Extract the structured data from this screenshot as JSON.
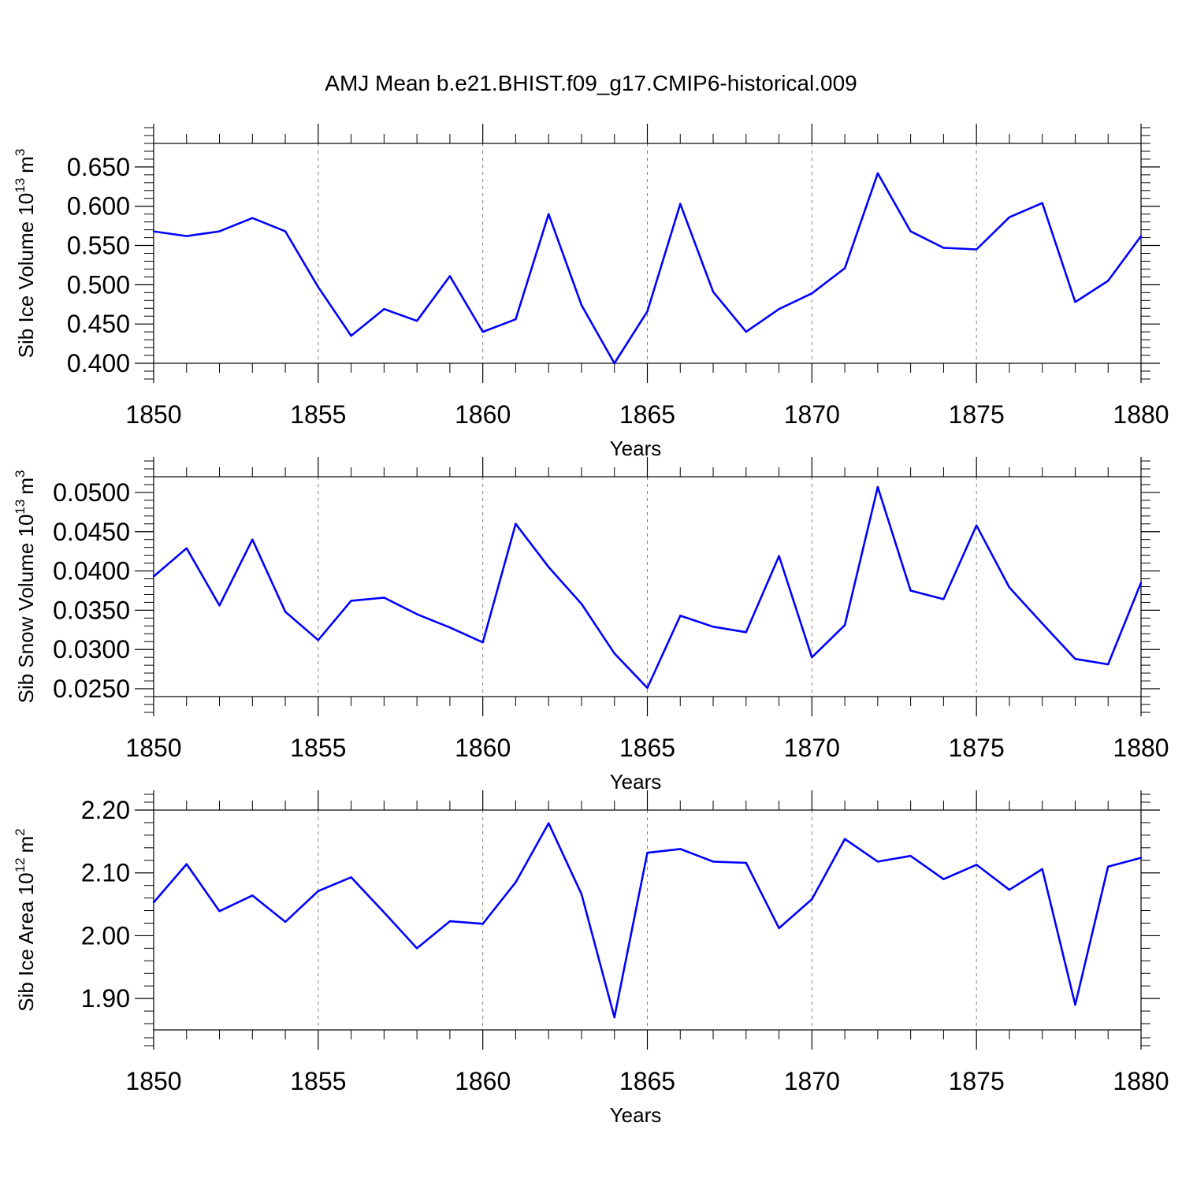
{
  "title": "AMJ Mean b.e21.BHIST.f09_g17.CMIP6-historical.009",
  "colors": {
    "line": "#0000ff",
    "axis": "#000000",
    "grid": "#808080"
  },
  "chart_data": [
    {
      "type": "line",
      "name": "ice-volume",
      "ylabel_main": "Sib Ice Volume 10",
      "ylabel_exp": "13",
      "ylabel_unit": "m",
      "ylabel_unit_exp": "3",
      "xlabel": "Years",
      "xlim": [
        1850,
        1880
      ],
      "ylim": [
        0.4,
        0.68
      ],
      "yticks": [
        0.4,
        0.45,
        0.5,
        0.55,
        0.6,
        0.65
      ],
      "ytick_labels": [
        "0.400",
        "0.450",
        "0.500",
        "0.550",
        "0.600",
        "0.650"
      ],
      "xticks": [
        1850,
        1855,
        1860,
        1865,
        1870,
        1875,
        1880
      ],
      "xtick_labels": [
        "1850",
        "1855",
        "1860",
        "1865",
        "1870",
        "1875",
        "1880"
      ],
      "grid_x": [
        1855,
        1860,
        1865,
        1870,
        1875
      ],
      "x": [
        1850,
        1851,
        1852,
        1853,
        1854,
        1855,
        1856,
        1857,
        1858,
        1859,
        1860,
        1861,
        1862,
        1863,
        1864,
        1865,
        1866,
        1867,
        1868,
        1869,
        1870,
        1871,
        1872,
        1873,
        1874,
        1875,
        1876,
        1877,
        1878,
        1879,
        1880
      ],
      "values": [
        0.568,
        0.562,
        0.568,
        0.585,
        0.568,
        0.497,
        0.435,
        0.469,
        0.454,
        0.511,
        0.44,
        0.456,
        0.59,
        0.474,
        0.4,
        0.466,
        0.603,
        0.491,
        0.44,
        0.469,
        0.489,
        0.521,
        0.642,
        0.568,
        0.547,
        0.545,
        0.586,
        0.604,
        0.478,
        0.505,
        0.562
      ]
    },
    {
      "type": "line",
      "name": "snow-volume",
      "ylabel_main": "Sib Snow Volume 10",
      "ylabel_exp": "13",
      "ylabel_unit": "m",
      "ylabel_unit_exp": "3",
      "xlabel": "Years",
      "xlim": [
        1850,
        1880
      ],
      "ylim": [
        0.024,
        0.052
      ],
      "yticks": [
        0.025,
        0.03,
        0.035,
        0.04,
        0.045,
        0.05
      ],
      "ytick_labels": [
        "0.0250",
        "0.0300",
        "0.0350",
        "0.0400",
        "0.0450",
        "0.0500"
      ],
      "xticks": [
        1850,
        1855,
        1860,
        1865,
        1870,
        1875,
        1880
      ],
      "xtick_labels": [
        "1850",
        "1855",
        "1860",
        "1865",
        "1870",
        "1875",
        "1880"
      ],
      "grid_x": [
        1855,
        1860,
        1865,
        1870,
        1875
      ],
      "x": [
        1850,
        1851,
        1852,
        1853,
        1854,
        1855,
        1856,
        1857,
        1858,
        1859,
        1860,
        1861,
        1862,
        1863,
        1864,
        1865,
        1866,
        1867,
        1868,
        1869,
        1870,
        1871,
        1872,
        1873,
        1874,
        1875,
        1876,
        1877,
        1878,
        1879,
        1880
      ],
      "values": [
        0.0393,
        0.0429,
        0.0356,
        0.044,
        0.0348,
        0.0312,
        0.0362,
        0.0366,
        0.0345,
        0.0328,
        0.0309,
        0.046,
        0.0405,
        0.0358,
        0.0295,
        0.0251,
        0.0343,
        0.0329,
        0.0322,
        0.0419,
        0.029,
        0.0331,
        0.0507,
        0.0375,
        0.0364,
        0.0458,
        0.0379,
        0.0333,
        0.0288,
        0.0281,
        0.0385
      ]
    },
    {
      "type": "line",
      "name": "ice-area",
      "ylabel_main": "Sib Ice Area 10",
      "ylabel_exp": "12",
      "ylabel_unit": "m",
      "ylabel_unit_exp": "2",
      "xlabel": "Years",
      "xlim": [
        1850,
        1880
      ],
      "ylim": [
        1.85,
        2.2
      ],
      "yticks": [
        1.9,
        2.0,
        2.1,
        2.2
      ],
      "ytick_labels": [
        "1.90",
        "2.00",
        "2.10",
        "2.20"
      ],
      "xticks": [
        1850,
        1855,
        1860,
        1865,
        1870,
        1875,
        1880
      ],
      "xtick_labels": [
        "1850",
        "1855",
        "1860",
        "1865",
        "1870",
        "1875",
        "1880"
      ],
      "grid_x": [
        1855,
        1860,
        1865,
        1870,
        1875
      ],
      "x": [
        1850,
        1851,
        1852,
        1853,
        1854,
        1855,
        1856,
        1857,
        1858,
        1859,
        1860,
        1861,
        1862,
        1863,
        1864,
        1865,
        1866,
        1867,
        1868,
        1869,
        1870,
        1871,
        1872,
        1873,
        1874,
        1875,
        1876,
        1877,
        1878,
        1879,
        1880
      ],
      "values": [
        2.053,
        2.114,
        2.039,
        2.064,
        2.022,
        2.071,
        2.093,
        2.037,
        1.98,
        2.023,
        2.019,
        2.085,
        2.179,
        2.066,
        1.87,
        2.132,
        2.138,
        2.118,
        2.116,
        2.012,
        2.058,
        2.154,
        2.118,
        2.127,
        2.09,
        2.113,
        2.073,
        2.106,
        1.89,
        2.11,
        2.124
      ]
    }
  ]
}
